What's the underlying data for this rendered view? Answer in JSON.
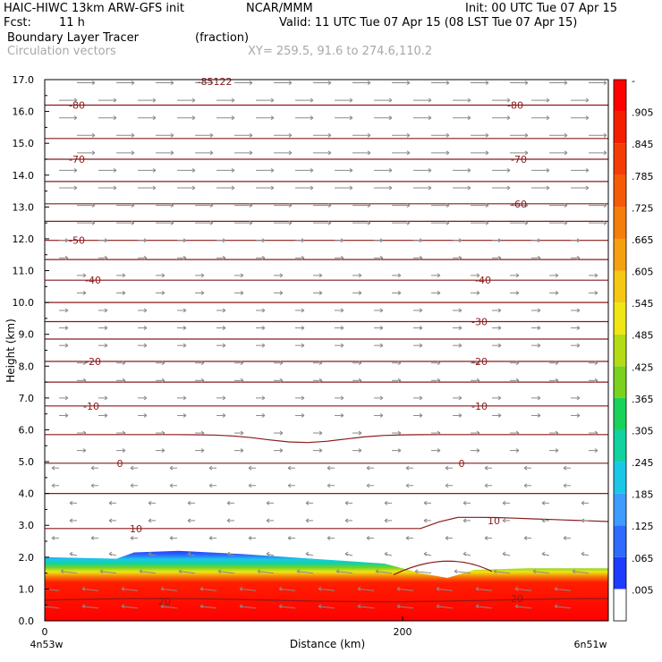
{
  "header": {
    "model": "HAIC-HIWC 13km ARW-GFS init",
    "org": "NCAR/MMM",
    "init": "Init: 00 UTC Tue 07 Apr 15",
    "fcst_label": "Fcst:",
    "fcst_value": "11 h",
    "valid": "Valid: 11 UTC Tue 07 Apr 15 (08 LST Tue 07 Apr 15)",
    "field": "Boundary Layer Tracer",
    "units": "(fraction)",
    "vectors": "Circulation vectors",
    "xy": "XY= 259.5, 91.6 to 274.6,110.2"
  },
  "colors": {
    "contour": "#8b1a1a",
    "vector": "#8a8a8a",
    "colorbar": [
      "#ffffff",
      "#1e3cff",
      "#2f6bff",
      "#3f9cff",
      "#19c8e6",
      "#12d2a0",
      "#19d25a",
      "#7ad21e",
      "#b4dc14",
      "#f0e614",
      "#f5c814",
      "#f5a00f",
      "#f57d0a",
      "#f55a05",
      "#f53c05",
      "#f51e00",
      "#ff0000"
    ]
  },
  "chart_data": {
    "type": "heatmap",
    "title": "Boundary Layer Tracer",
    "xlabel": "Distance (km)",
    "ylabel": "Height (km)",
    "x_range": [
      0,
      315
    ],
    "y_range": [
      0,
      17
    ],
    "x_ticks": [
      0,
      200
    ],
    "x_tick_labels": [
      "0",
      "200"
    ],
    "x_end_labels": [
      "4n53w",
      "6n51w"
    ],
    "y_ticks": [
      0,
      1,
      2,
      3,
      4,
      5,
      6,
      7,
      8,
      9,
      10,
      11,
      12,
      13,
      14,
      15,
      16,
      17
    ],
    "y_tick_labels": [
      "0.0",
      "1.0",
      "2.0",
      "3.0",
      "4.0",
      "5.0",
      "6.0",
      "7.0",
      "8.0",
      "9.0",
      "10.0",
      "11.0",
      "12.0",
      "13.0",
      "14.0",
      "15.0",
      "16.0",
      "17.0"
    ],
    "colorbar_labels": [
      "-",
      ".905",
      ".845",
      ".785",
      ".725",
      ".665",
      ".605",
      ".545",
      ".485",
      ".425",
      ".365",
      ".305",
      ".245",
      ".185",
      ".125",
      ".065",
      ".005"
    ],
    "tracer_top_km": [
      {
        "x": 0,
        "y": 2.0
      },
      {
        "x": 40,
        "y": 1.95
      },
      {
        "x": 50,
        "y": 2.15
      },
      {
        "x": 75,
        "y": 2.2
      },
      {
        "x": 110,
        "y": 2.1
      },
      {
        "x": 150,
        "y": 1.95
      },
      {
        "x": 190,
        "y": 1.8
      },
      {
        "x": 210,
        "y": 1.5
      },
      {
        "x": 225,
        "y": 1.35
      },
      {
        "x": 240,
        "y": 1.6
      },
      {
        "x": 270,
        "y": 1.65
      },
      {
        "x": 315,
        "y": 1.65
      }
    ],
    "contour_labels": [
      {
        "text": "-85122",
        "x": 95,
        "y": 16.95
      },
      {
        "text": "-80",
        "x": 18,
        "y": 16.2
      },
      {
        "text": "-80",
        "x": 263,
        "y": 16.2
      },
      {
        "text": "-70",
        "x": 18,
        "y": 14.5
      },
      {
        "text": "-70",
        "x": 265,
        "y": 14.5
      },
      {
        "text": "-60",
        "x": 265,
        "y": 13.1
      },
      {
        "text": "-50",
        "x": 18,
        "y": 11.95
      },
      {
        "text": "-40",
        "x": 27,
        "y": 10.7
      },
      {
        "text": "-40",
        "x": 245,
        "y": 10.7
      },
      {
        "text": "-30",
        "x": 243,
        "y": 9.4
      },
      {
        "text": "-20",
        "x": 27,
        "y": 8.15
      },
      {
        "text": "-20",
        "x": 243,
        "y": 8.15
      },
      {
        "text": "-10",
        "x": 26,
        "y": 6.75
      },
      {
        "text": "-10",
        "x": 243,
        "y": 6.75
      },
      {
        "text": "0",
        "x": 42,
        "y": 4.95
      },
      {
        "text": "0",
        "x": 233,
        "y": 4.95
      },
      {
        "text": "10",
        "x": 51,
        "y": 2.9
      },
      {
        "text": "10",
        "x": 251,
        "y": 3.15
      },
      {
        "text": "20",
        "x": 67,
        "y": 0.62
      },
      {
        "text": "20",
        "x": 264,
        "y": 0.7
      }
    ]
  }
}
